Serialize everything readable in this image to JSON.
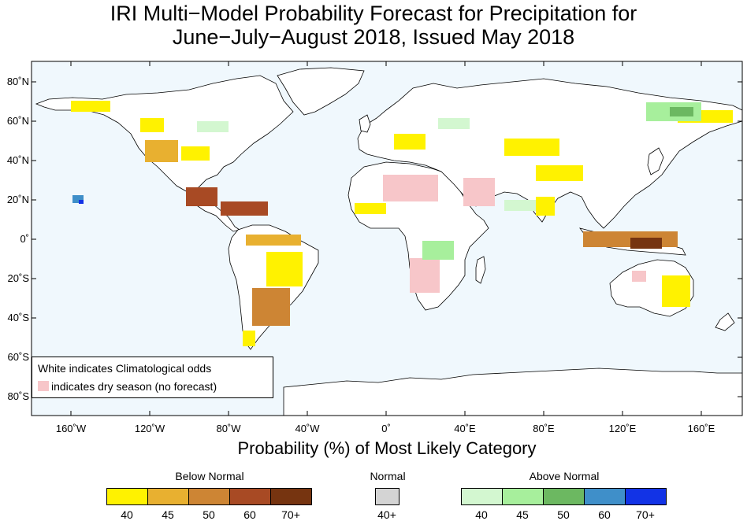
{
  "title": {
    "line1": "IRI Multi−Model Probability Forecast for Precipitation for",
    "line2": "June−July−August 2018, Issued May 2018"
  },
  "axes": {
    "lat_labels": [
      "80˚N",
      "60˚N",
      "40˚N",
      "20˚N",
      "0˚",
      "20˚S",
      "40˚S",
      "60˚S",
      "80˚S"
    ],
    "lon_labels": [
      "160˚W",
      "120˚W",
      "80˚W",
      "40˚W",
      "0˚",
      "40˚E",
      "80˚E",
      "120˚E",
      "160˚E"
    ],
    "x_label": "Probability (%) of Most Likely Category"
  },
  "note": {
    "line1": "White indicates Climatological odds",
    "line2": "indicates dry season (no forecast)",
    "dry_color": "#f7c6c9"
  },
  "legend": {
    "below": {
      "title": "Below Normal",
      "items": [
        {
          "label": "40",
          "color": "#fff200"
        },
        {
          "label": "45",
          "color": "#e8b030"
        },
        {
          "label": "50",
          "color": "#cd8534"
        },
        {
          "label": "60",
          "color": "#a84a24"
        },
        {
          "label": "70+",
          "color": "#763410"
        }
      ]
    },
    "normal": {
      "title": "Normal",
      "items": [
        {
          "label": "40+",
          "color": "#d4d4d4"
        }
      ]
    },
    "above": {
      "title": "Above Normal",
      "items": [
        {
          "label": "40",
          "color": "#d3f7d0"
        },
        {
          "label": "45",
          "color": "#a7ef9c"
        },
        {
          "label": "50",
          "color": "#6cb861"
        },
        {
          "label": "60",
          "color": "#3f8fc9"
        },
        {
          "label": "70+",
          "color": "#1233e6"
        }
      ]
    }
  },
  "colors": {
    "ocean": "#f0f8fd",
    "land": "#ffffff"
  }
}
